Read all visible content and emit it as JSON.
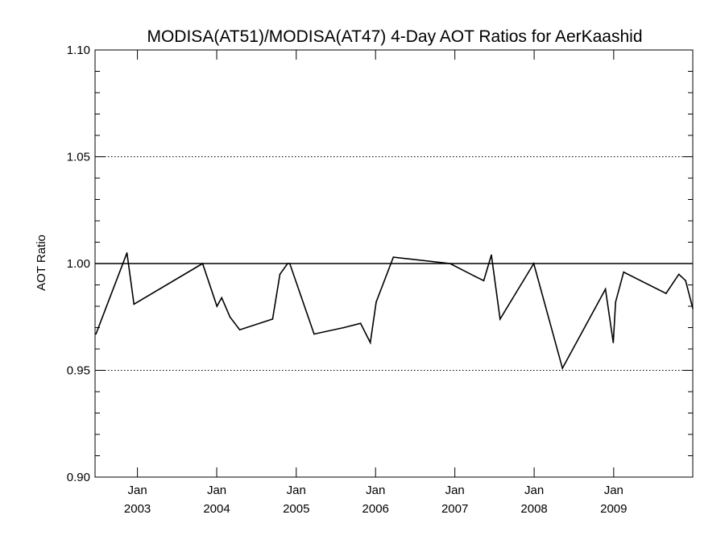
{
  "chart_data": {
    "type": "line",
    "title": "MODISA(AT51)/MODISA(AT47) 4-Day AOT Ratios for AerKaashid",
    "xlabel": "",
    "ylabel": "AOT Ratio",
    "xlim": [
      "2002-06-20",
      "2009-12-31"
    ],
    "ylim": [
      0.9,
      1.1
    ],
    "grid": "dotted horizontal lines at major y ticks",
    "reference_line": {
      "y": 1.0,
      "style": "solid"
    },
    "y_ticks": [
      {
        "value": 0.9,
        "label": "0.90"
      },
      {
        "value": 0.95,
        "label": "0.95"
      },
      {
        "value": 1.0,
        "label": "1.00"
      },
      {
        "value": 1.05,
        "label": "1.05"
      },
      {
        "value": 1.1,
        "label": "1.10"
      }
    ],
    "x_ticks": [
      {
        "date": "2003-01-01",
        "month": "Jan",
        "year": "2003"
      },
      {
        "date": "2004-01-01",
        "month": "Jan",
        "year": "2004"
      },
      {
        "date": "2005-01-01",
        "month": "Jan",
        "year": "2005"
      },
      {
        "date": "2006-01-01",
        "month": "Jan",
        "year": "2006"
      },
      {
        "date": "2007-01-01",
        "month": "Jan",
        "year": "2007"
      },
      {
        "date": "2008-01-01",
        "month": "Jan",
        "year": "2008"
      },
      {
        "date": "2009-01-01",
        "month": "Jan",
        "year": "2009"
      }
    ],
    "series": [
      {
        "points": [
          {
            "x": "2002-06-24",
            "y": 0.967
          },
          {
            "x": "2002-11-14",
            "y": 1.005
          },
          {
            "x": "2002-12-16",
            "y": 0.981
          },
          {
            "x": "2003-10-28",
            "y": 1.0
          },
          {
            "x": "2004-01-02",
            "y": 0.98
          },
          {
            "x": "2004-01-24",
            "y": 0.984
          },
          {
            "x": "2004-03-02",
            "y": 0.975
          },
          {
            "x": "2004-04-16",
            "y": 0.969
          },
          {
            "x": "2004-09-14",
            "y": 0.974
          },
          {
            "x": "2004-10-18",
            "y": 0.995
          },
          {
            "x": "2004-11-22",
            "y": 1.0
          },
          {
            "x": "2004-12-02",
            "y": 1.0
          },
          {
            "x": "2005-03-24",
            "y": 0.967
          },
          {
            "x": "2005-08-08",
            "y": 0.97
          },
          {
            "x": "2005-10-24",
            "y": 0.972
          },
          {
            "x": "2005-12-08",
            "y": 0.963
          },
          {
            "x": "2006-01-04",
            "y": 0.982
          },
          {
            "x": "2006-03-24",
            "y": 1.003
          },
          {
            "x": "2006-12-10",
            "y": 1.0
          },
          {
            "x": "2007-04-04",
            "y": 0.994
          },
          {
            "x": "2007-05-14",
            "y": 0.992
          },
          {
            "x": "2007-06-18",
            "y": 1.004
          },
          {
            "x": "2007-07-28",
            "y": 0.974
          },
          {
            "x": "2007-12-30",
            "y": 1.0
          },
          {
            "x": "2008-05-10",
            "y": 0.951
          },
          {
            "x": "2008-11-24",
            "y": 0.988
          },
          {
            "x": "2008-12-30",
            "y": 0.963
          },
          {
            "x": "2009-01-10",
            "y": 0.982
          },
          {
            "x": "2009-02-16",
            "y": 0.996
          },
          {
            "x": "2009-08-30",
            "y": 0.986
          },
          {
            "x": "2009-10-28",
            "y": 0.995
          },
          {
            "x": "2009-11-28",
            "y": 0.992
          },
          {
            "x": "2009-12-31",
            "y": 0.979
          }
        ]
      }
    ],
    "colors": {
      "line": "#000000",
      "background": "#ffffff"
    }
  }
}
